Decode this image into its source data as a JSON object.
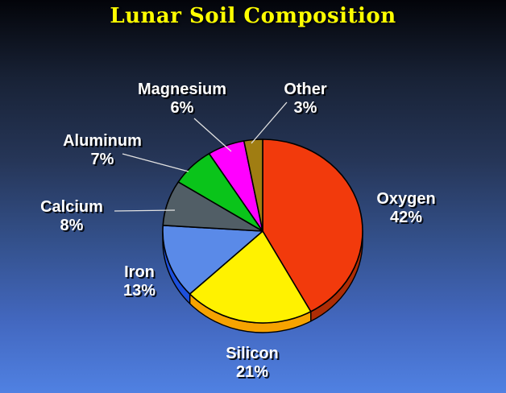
{
  "chart_data": {
    "type": "pie",
    "title": "Lunar Soil Composition",
    "title_color": "#FFFF00",
    "label_color": "#FFFFFF",
    "leader_line_color": "#E2E2E2",
    "effect": "3d",
    "start_angle_deg": 0,
    "direction": "clockwise",
    "legend_position": "none",
    "background_gradient": [
      "#030409",
      "#182236",
      "#263658",
      "#33508A",
      "#4368C0",
      "#5081E2"
    ],
    "slices": [
      {
        "name": "Oxygen",
        "value": 42,
        "pct": "42%",
        "color": "#F23A0C",
        "rim_color": "#AE2D06"
      },
      {
        "name": "Silicon",
        "value": 21,
        "pct": "21%",
        "color": "#FFF200",
        "rim_color": "#F7A300"
      },
      {
        "name": "Iron",
        "value": 13,
        "pct": "13%",
        "color": "#5A8AE8",
        "rim_color": "#1D50DC"
      },
      {
        "name": "Calcium",
        "value": 8,
        "pct": "8%",
        "color": "#515E66",
        "rim_color": "#37444C"
      },
      {
        "name": "Aluminum",
        "value": 7,
        "pct": "7%",
        "color": "#0AC41A",
        "rim_color": "#078010"
      },
      {
        "name": "Magnesium",
        "value": 6,
        "pct": "6%",
        "color": "#FF00FF",
        "rim_color": "#AA00AA"
      },
      {
        "name": "Other",
        "value": 3,
        "pct": "3%",
        "color": "#A07D12",
        "rim_color": "#6E550C"
      }
    ]
  }
}
